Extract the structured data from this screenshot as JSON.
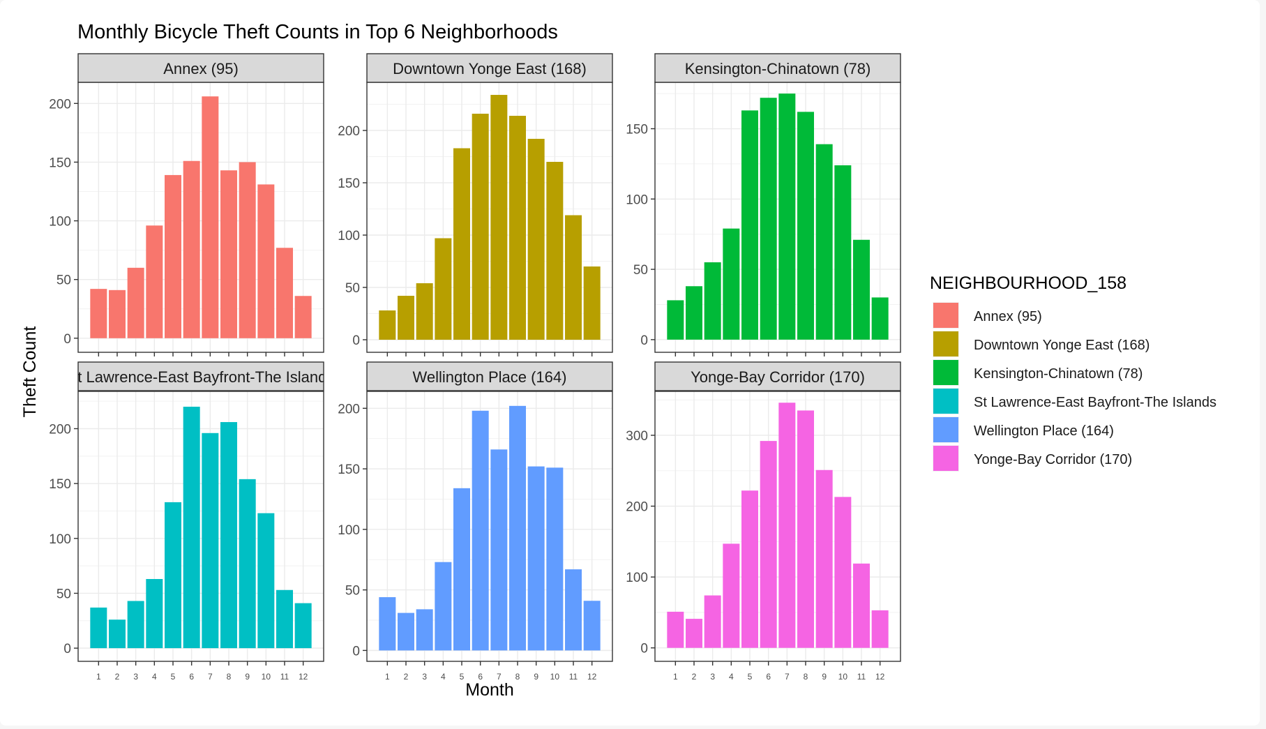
{
  "chart_data": {
    "type": "bar",
    "title": "Monthly Bicycle Theft Counts in Top 6 Neighborhoods",
    "xlabel": "Month",
    "ylabel": "Theft Count",
    "categories": [
      "1",
      "2",
      "3",
      "4",
      "5",
      "6",
      "7",
      "8",
      "9",
      "10",
      "11",
      "12"
    ],
    "grid": true,
    "legend": {
      "title": "NEIGHBOURHOOD_158",
      "position": "right",
      "entries": [
        {
          "label": "Annex (95)",
          "color": "#F8766D"
        },
        {
          "label": "Downtown Yonge East (168)",
          "color": "#B79F00"
        },
        {
          "label": "Kensington-Chinatown (78)",
          "color": "#00BA38"
        },
        {
          "label": "St Lawrence-East Bayfront-The Islands",
          "color": "#00BFC4"
        },
        {
          "label": "Wellington Place (164)",
          "color": "#619CFF"
        },
        {
          "label": "Yonge-Bay Corridor (170)",
          "color": "#F564E3"
        }
      ]
    },
    "panels": [
      {
        "title": "Annex (95)",
        "color": "#F8766D",
        "ylim": [
          -12,
          218
        ],
        "yticks": [
          0,
          50,
          100,
          150,
          200
        ],
        "values": [
          42,
          41,
          60,
          96,
          139,
          151,
          206,
          143,
          150,
          131,
          77,
          36
        ]
      },
      {
        "title": "Downtown Yonge East (168)",
        "color": "#B79F00",
        "ylim": [
          -12,
          246
        ],
        "yticks": [
          0,
          50,
          100,
          150,
          200
        ],
        "values": [
          28,
          42,
          54,
          97,
          183,
          216,
          234,
          214,
          192,
          170,
          119,
          70
        ]
      },
      {
        "title": "Kensington-Chinatown (78)",
        "color": "#00BA38",
        "ylim": [
          -9,
          183
        ],
        "yticks": [
          0,
          50,
          100,
          150
        ],
        "values": [
          28,
          38,
          55,
          79,
          163,
          172,
          175,
          162,
          139,
          124,
          71,
          30
        ]
      },
      {
        "title": "St Lawrence-East Bayfront-The Islands",
        "color": "#00BFC4",
        "ylim": [
          -12,
          234
        ],
        "yticks": [
          0,
          50,
          100,
          150,
          200
        ],
        "values": [
          37,
          26,
          43,
          63,
          133,
          220,
          196,
          206,
          154,
          123,
          53,
          41
        ]
      },
      {
        "title": "Wellington Place (164)",
        "color": "#619CFF",
        "ylim": [
          -9,
          214
        ],
        "yticks": [
          0,
          50,
          100,
          150,
          200
        ],
        "values": [
          44,
          31,
          34,
          73,
          134,
          198,
          166,
          202,
          152,
          151,
          67,
          41
        ]
      },
      {
        "title": "Yonge-Bay Corridor (170)",
        "color": "#F564E3",
        "ylim": [
          -19,
          362
        ],
        "yticks": [
          0,
          100,
          200,
          300
        ],
        "values": [
          51,
          41,
          74,
          147,
          222,
          292,
          346,
          335,
          251,
          213,
          119,
          53
        ]
      }
    ]
  }
}
